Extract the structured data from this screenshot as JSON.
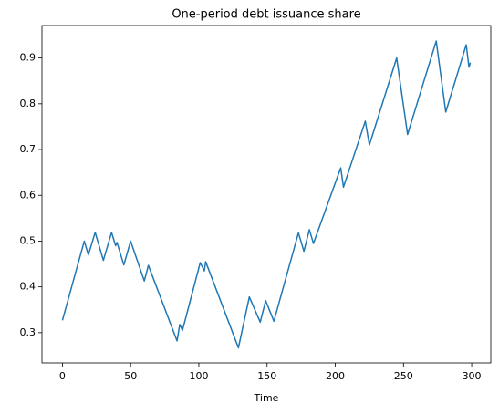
{
  "chart_data": {
    "type": "line",
    "title": "One-period debt issuance share",
    "xlabel": "Time",
    "x": [
      0,
      16,
      19,
      24,
      30,
      36,
      39,
      40,
      45,
      50,
      60,
      63,
      84,
      86,
      88,
      101,
      104,
      105,
      129,
      137,
      145,
      149,
      155,
      173,
      177,
      181,
      184,
      204,
      206,
      222,
      225,
      245,
      253,
      274,
      281,
      296,
      298,
      299
    ],
    "series": [
      {
        "color": "#1f77b4",
        "values": [
          0.327,
          0.5,
          0.47,
          0.519,
          0.458,
          0.519,
          0.49,
          0.497,
          0.448,
          0.5,
          0.413,
          0.447,
          0.282,
          0.318,
          0.305,
          0.453,
          0.435,
          0.455,
          0.267,
          0.378,
          0.323,
          0.37,
          0.325,
          0.518,
          0.478,
          0.525,
          0.495,
          0.66,
          0.618,
          0.762,
          0.71,
          0.9,
          0.733,
          0.937,
          0.782,
          0.929,
          0.88,
          0.89
        ]
      }
    ],
    "xlim": [
      -15,
      314
    ],
    "xticks": [
      0,
      50,
      100,
      150,
      200,
      250,
      300
    ],
    "ylim": [
      0.234,
      0.971
    ],
    "yticks": [
      0.3,
      0.4,
      0.5,
      0.6,
      0.7,
      0.8,
      0.9
    ]
  }
}
